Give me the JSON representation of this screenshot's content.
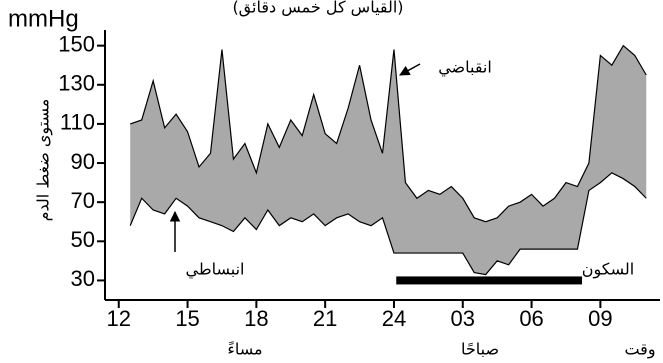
{
  "chart_data": {
    "type": "range_area",
    "title": "(القياس كل خمس دقائق)",
    "unit": "mmHg",
    "y_label": "مستوى ضغط الدم",
    "x_label": "وقت",
    "period_labels": [
      "مساءً",
      "صباحًا"
    ],
    "sleep_label": "السكون",
    "sleep_period": [
      24.1,
      32.2
    ],
    "x": [
      12.5,
      13,
      13.5,
      14,
      14.5,
      15,
      15.5,
      16,
      16.5,
      17,
      17.5,
      18,
      18.5,
      19,
      19.5,
      20,
      20.5,
      21,
      21.5,
      22,
      22.5,
      23,
      23.5,
      24,
      24.5,
      25,
      25.5,
      26,
      26.5,
      27,
      27.5,
      28,
      28.5,
      29,
      29.5,
      30,
      30.5,
      31,
      31.5,
      32,
      32.5,
      33,
      33.5,
      34,
      34.5,
      35
    ],
    "series": [
      {
        "name": "انقباضي",
        "color": "#000000",
        "values": [
          110,
          112,
          132,
          108,
          115,
          106,
          88,
          95,
          148,
          92,
          100,
          85,
          110,
          98,
          112,
          104,
          125,
          105,
          100,
          118,
          140,
          112,
          95,
          148,
          80,
          72,
          76,
          74,
          78,
          72,
          62,
          60,
          62,
          68,
          70,
          74,
          68,
          72,
          80,
          78,
          90,
          145,
          140,
          150,
          145,
          135
        ]
      },
      {
        "name": "انبساطي",
        "color": "#000000",
        "values": [
          58,
          72,
          66,
          64,
          72,
          68,
          62,
          60,
          58,
          55,
          62,
          56,
          66,
          58,
          62,
          60,
          64,
          58,
          62,
          64,
          60,
          58,
          62,
          44,
          44,
          44,
          44,
          44,
          44,
          44,
          34,
          33,
          40,
          38,
          46,
          46,
          46,
          46,
          46,
          46,
          76,
          80,
          85,
          82,
          78,
          72
        ]
      }
    ],
    "fill_color": "#a9a9a9",
    "xlim": [
      11.4,
      35.6
    ],
    "xticks": [
      12,
      15,
      18,
      21,
      24,
      {
        "value": 27,
        "label": "03"
      },
      {
        "value": 30,
        "label": "06"
      },
      {
        "value": 33,
        "label": "09"
      }
    ],
    "ylim": [
      20,
      158
    ],
    "yticks": [
      30,
      50,
      70,
      90,
      110,
      130,
      150
    ]
  }
}
